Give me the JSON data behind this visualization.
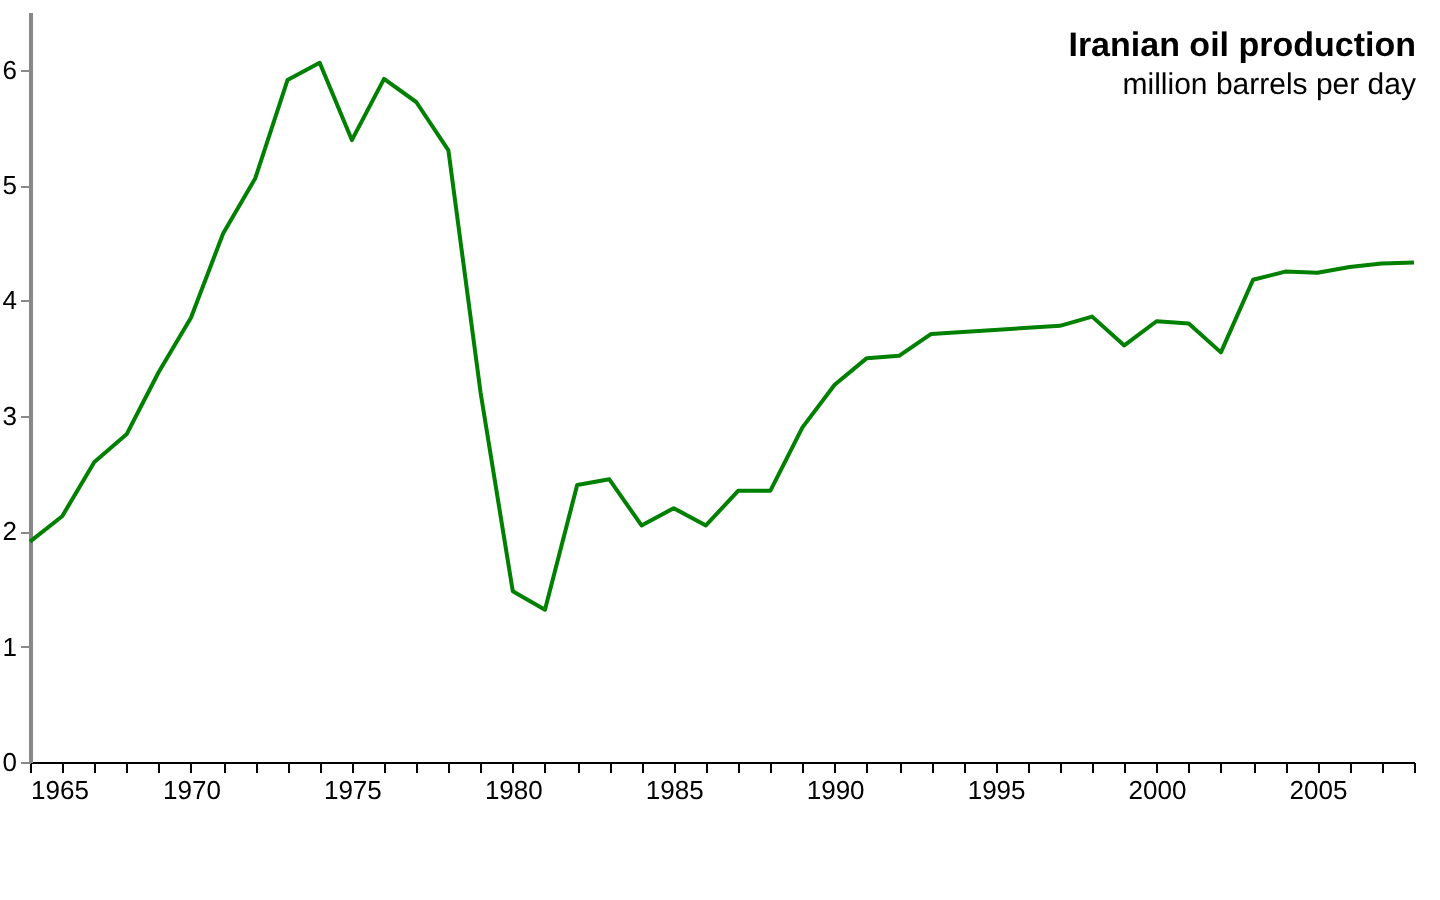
{
  "chart_data": {
    "type": "line",
    "title": "Iranian oil production",
    "subtitle": "million barrels per day",
    "x": [
      1965,
      1966,
      1967,
      1968,
      1969,
      1970,
      1971,
      1972,
      1973,
      1974,
      1975,
      1976,
      1977,
      1978,
      1979,
      1980,
      1981,
      1982,
      1983,
      1984,
      1985,
      1986,
      1987,
      1988,
      1989,
      1990,
      1991,
      1992,
      1993,
      1997,
      1998,
      1999,
      2000,
      2001,
      2002,
      2003,
      2004,
      2005,
      2006,
      2007,
      2008
    ],
    "series": [
      {
        "color": "#008000",
        "values": [
          1.91,
          2.13,
          2.6,
          2.84,
          3.38,
          3.85,
          4.58,
          5.06,
          5.91,
          6.06,
          5.39,
          5.92,
          5.72,
          5.3,
          3.2,
          1.48,
          1.32,
          2.4,
          2.45,
          2.05,
          2.2,
          2.05,
          2.35,
          2.35,
          2.9,
          3.27,
          3.5,
          3.52,
          3.71,
          3.78,
          3.86,
          3.61,
          3.82,
          3.8,
          3.55,
          4.18,
          4.25,
          4.24,
          4.29,
          4.32,
          4.33
        ]
      }
    ],
    "xlim": [
      1965,
      2008
    ],
    "xticks": [
      1965,
      {
        "value": 1966,
        "label": null
      },
      {
        "value": 1967,
        "label": null
      },
      {
        "value": 1968,
        "label": null
      },
      {
        "value": 1969,
        "label": null
      },
      1970,
      {
        "value": 1971,
        "label": null
      },
      {
        "value": 1972,
        "label": null
      },
      {
        "value": 1973,
        "label": null
      },
      {
        "value": 1974,
        "label": null
      },
      1975,
      {
        "value": 1976,
        "label": null
      },
      {
        "value": 1977,
        "label": null
      },
      {
        "value": 1978,
        "label": null
      },
      {
        "value": 1979,
        "label": null
      },
      1980,
      {
        "value": 1981,
        "label": null
      },
      {
        "value": 1982,
        "label": null
      },
      {
        "value": 1983,
        "label": null
      },
      {
        "value": 1984,
        "label": null
      },
      1985,
      {
        "value": 1986,
        "label": null
      },
      {
        "value": 1987,
        "label": null
      },
      {
        "value": 1988,
        "label": null
      },
      {
        "value": 1989,
        "label": null
      },
      1990,
      {
        "value": 1991,
        "label": null
      },
      {
        "value": 1992,
        "label": null
      },
      {
        "value": 1993,
        "label": null
      },
      {
        "value": 1994,
        "label": null
      },
      1995,
      {
        "value": 1996,
        "label": null
      },
      {
        "value": 1997,
        "label": null
      },
      {
        "value": 1998,
        "label": null
      },
      {
        "value": 1999,
        "label": null
      },
      2000,
      {
        "value": 2001,
        "label": null
      },
      {
        "value": 2002,
        "label": null
      },
      {
        "value": 2003,
        "label": null
      },
      {
        "value": 2004,
        "label": null
      },
      2005,
      {
        "value": 2006,
        "label": null
      },
      {
        "value": 2007,
        "label": null
      },
      {
        "value": 2008,
        "label": null
      }
    ],
    "ylim": [
      0,
      6.5
    ],
    "yticks": [
      0,
      1,
      2,
      3,
      4,
      5,
      6
    ],
    "grid": false,
    "marker": "none",
    "line_style": "solid"
  }
}
